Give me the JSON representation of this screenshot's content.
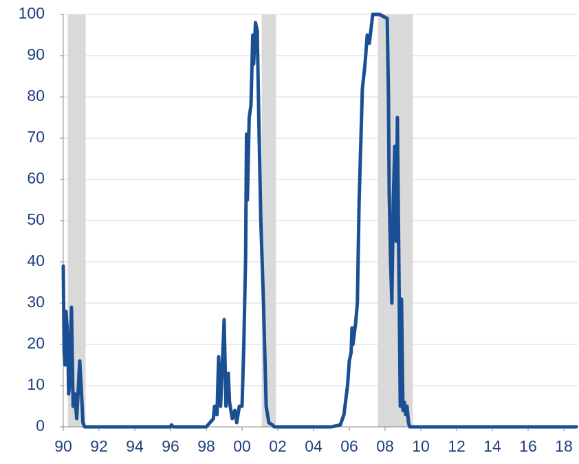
{
  "chart_data": {
    "type": "line",
    "x": [
      1990.0,
      1990.05,
      1990.1,
      1990.15,
      1990.25,
      1990.3,
      1990.35,
      1990.46,
      1990.55,
      1990.65,
      1990.75,
      1990.85,
      1990.92,
      1991.0,
      1991.1,
      1991.2,
      1996.0,
      1996.05,
      1996.15,
      1998.0,
      1998.2,
      1998.4,
      1998.46,
      1998.6,
      1998.69,
      1998.8,
      1999.0,
      1999.1,
      1999.23,
      1999.3,
      1999.45,
      1999.6,
      1999.7,
      1999.85,
      2000.0,
      2000.1,
      2000.2,
      2000.25,
      2000.3,
      2000.4,
      2000.5,
      2000.6,
      2000.65,
      2000.75,
      2000.8,
      2000.85,
      2000.95,
      2001.05,
      2001.2,
      2001.35,
      2001.5,
      2001.7,
      2001.8,
      2005.0,
      2005.5,
      2005.7,
      2005.9,
      2006.0,
      2006.1,
      2006.15,
      2006.2,
      2006.35,
      2006.45,
      2006.55,
      2006.73,
      2006.88,
      2007.0,
      2007.12,
      2007.23,
      2007.31,
      2007.7,
      2008.12,
      2008.19,
      2008.23,
      2008.31,
      2008.38,
      2008.46,
      2008.54,
      2008.62,
      2008.69,
      2008.77,
      2008.85,
      2008.92,
      2009.0,
      2009.08,
      2009.15,
      2009.23,
      2009.31,
      2009.38,
      2009.5,
      2018.7
    ],
    "series": [
      {
        "color": "#1b4f93",
        "values": [
          39,
          18,
          15,
          28,
          22,
          8,
          10,
          29,
          5,
          8,
          2,
          10,
          16,
          10,
          1,
          0,
          0,
          0.5,
          0,
          0,
          1,
          2,
          5,
          3,
          17,
          5,
          26,
          5,
          13,
          6,
          2,
          4,
          1,
          5,
          5,
          20,
          41,
          71,
          55,
          75,
          78,
          95,
          88,
          98,
          97,
          96,
          72,
          50,
          30,
          5,
          1,
          0.5,
          0,
          0,
          0.5,
          3,
          10,
          16,
          18,
          24,
          20,
          25,
          30,
          55,
          82,
          88,
          95,
          93,
          97,
          100,
          100,
          99,
          80,
          57,
          40,
          30,
          55,
          68,
          45,
          75,
          40,
          5,
          31,
          4,
          6,
          3,
          5,
          1,
          0,
          0,
          0
        ]
      }
    ],
    "shaded_regions": [
      [
        1990.25,
        1991.25
      ],
      [
        2001.1,
        2001.9
      ],
      [
        2007.6,
        2009.55
      ]
    ],
    "shade_color": "#d9d9d9",
    "xlim": [
      1990,
      2018.77
    ],
    "xticks": [
      {
        "value": 1990,
        "label": "90"
      },
      {
        "value": 1992,
        "label": "92"
      },
      {
        "value": 1994,
        "label": "94"
      },
      {
        "value": 1996,
        "label": "96"
      },
      {
        "value": 1998,
        "label": "98"
      },
      {
        "value": 2000,
        "label": "00"
      },
      {
        "value": 2002,
        "label": "02"
      },
      {
        "value": 2004,
        "label": "04"
      },
      {
        "value": 2006,
        "label": "06"
      },
      {
        "value": 2008,
        "label": "08"
      },
      {
        "value": 2010,
        "label": "10"
      },
      {
        "value": 2012,
        "label": "12"
      },
      {
        "value": 2014,
        "label": "14"
      },
      {
        "value": 2016,
        "label": "16"
      },
      {
        "value": 2018,
        "label": "18"
      }
    ],
    "ylim": [
      0,
      100
    ],
    "yticks": [
      0,
      10,
      20,
      30,
      40,
      50,
      60,
      70,
      80,
      90,
      100
    ],
    "grid": true
  }
}
